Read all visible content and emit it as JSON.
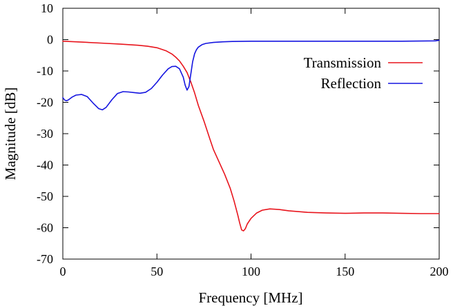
{
  "chart_data": {
    "type": "line",
    "title": "",
    "xlabel": "Frequency [MHz]",
    "ylabel": "Magnitude [dB]",
    "xlim": [
      0,
      200
    ],
    "ylim": [
      -70,
      10
    ],
    "xticks": [
      0,
      50,
      100,
      150,
      200
    ],
    "yticks": [
      -70,
      -60,
      -50,
      -40,
      -30,
      -20,
      -10,
      0,
      10
    ],
    "grid": false,
    "legend_position": "top-right",
    "series": [
      {
        "name": "Transmission",
        "color": "#e8141c",
        "x": [
          0,
          10,
          20,
          30,
          40,
          45,
          50,
          55,
          58,
          60,
          62,
          64,
          66,
          68,
          70,
          72,
          75,
          78,
          80,
          83,
          86,
          89,
          91,
          93,
          94,
          95,
          96,
          97,
          98,
          100,
          103,
          106,
          110,
          115,
          120,
          130,
          140,
          150,
          160,
          170,
          180,
          190,
          200
        ],
        "y": [
          -0.5,
          -0.8,
          -1.1,
          -1.4,
          -1.8,
          -2.1,
          -2.6,
          -3.6,
          -4.6,
          -5.6,
          -6.8,
          -8.5,
          -10.5,
          -13.5,
          -17.0,
          -21.0,
          -26.0,
          -31.5,
          -35.0,
          -39.0,
          -43.0,
          -47.5,
          -51.5,
          -56.0,
          -58.5,
          -60.7,
          -61.0,
          -60.3,
          -58.8,
          -57.0,
          -55.3,
          -54.4,
          -54.0,
          -54.2,
          -54.6,
          -55.1,
          -55.3,
          -55.4,
          -55.3,
          -55.3,
          -55.4,
          -55.5,
          -55.5
        ]
      },
      {
        "name": "Reflection",
        "color": "#1414e0",
        "x": [
          0,
          1,
          2,
          3,
          5,
          7,
          10,
          13,
          16,
          19,
          21,
          23,
          26,
          29,
          32,
          35,
          38,
          41,
          44,
          47,
          50,
          53,
          56,
          58,
          60,
          62,
          64,
          65,
          66,
          67,
          68,
          69,
          70,
          71,
          72,
          74,
          76,
          80,
          85,
          90,
          100,
          120,
          150,
          180,
          198,
          200
        ],
        "y": [
          -18.5,
          -19.3,
          -19.5,
          -19.2,
          -18.3,
          -17.7,
          -17.5,
          -18.2,
          -20.2,
          -22.0,
          -22.4,
          -21.6,
          -19.2,
          -17.2,
          -16.6,
          -16.7,
          -16.9,
          -17.1,
          -16.8,
          -15.6,
          -13.6,
          -11.3,
          -9.3,
          -8.6,
          -8.5,
          -9.3,
          -12.0,
          -14.5,
          -16.1,
          -15.0,
          -11.0,
          -7.0,
          -4.5,
          -3.2,
          -2.4,
          -1.6,
          -1.2,
          -0.9,
          -0.7,
          -0.6,
          -0.5,
          -0.5,
          -0.5,
          -0.5,
          -0.4,
          -0.2
        ]
      }
    ]
  }
}
